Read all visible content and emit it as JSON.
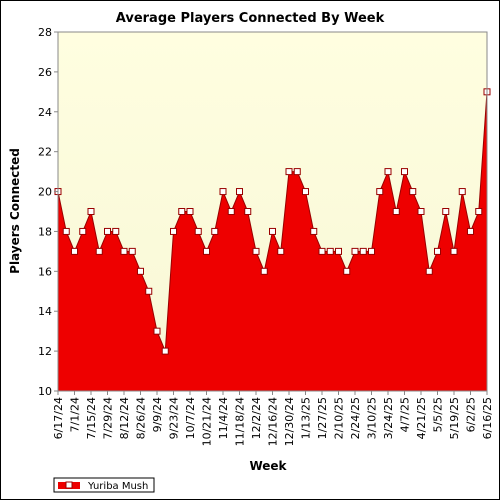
{
  "chart_data": {
    "type": "area",
    "title": "Average Players Connected By Week",
    "xlabel": "Week",
    "ylabel": "Players Connected",
    "ylim": [
      10,
      28
    ],
    "yticks": [
      10,
      12,
      14,
      16,
      18,
      20,
      22,
      24,
      26,
      28
    ],
    "grid": false,
    "legend_position": "bottom-left",
    "colors": {
      "fill": "#ee0000",
      "line": "#990000",
      "plot_bg_top": "#fffee0",
      "plot_bg_bottom": "#f7f7d6",
      "marker_fill": "#ffffff"
    },
    "x_tick_labels": [
      "6/17/24",
      "7/1/24",
      "7/15/24",
      "7/29/24",
      "8/12/24",
      "8/26/24",
      "9/9/24",
      "9/23/24",
      "10/7/24",
      "10/21/24",
      "11/4/24",
      "11/18/24",
      "12/2/24",
      "12/16/24",
      "12/30/24",
      "1/13/25",
      "1/27/25",
      "2/10/25",
      "2/24/25",
      "3/10/25",
      "3/24/25",
      "4/7/25",
      "4/21/25",
      "5/5/25",
      "5/19/25",
      "6/2/25",
      "6/16/25"
    ],
    "series": [
      {
        "name": "Yuriba Mush",
        "x": [
          "6/17/24",
          "6/24/24",
          "7/1/24",
          "7/8/24",
          "7/15/24",
          "7/22/24",
          "7/29/24",
          "8/5/24",
          "8/12/24",
          "8/19/24",
          "8/26/24",
          "9/2/24",
          "9/9/24",
          "9/16/24",
          "9/23/24",
          "9/30/24",
          "10/7/24",
          "10/14/24",
          "10/21/24",
          "10/28/24",
          "11/4/24",
          "11/11/24",
          "11/18/24",
          "11/25/24",
          "12/2/24",
          "12/9/24",
          "12/16/24",
          "12/23/24",
          "12/30/24",
          "1/6/25",
          "1/13/25",
          "1/20/25",
          "1/27/25",
          "2/3/25",
          "2/10/25",
          "2/17/25",
          "2/24/25",
          "3/3/25",
          "3/10/25",
          "3/17/25",
          "3/24/25",
          "3/31/25",
          "4/7/25",
          "4/14/25",
          "4/21/25",
          "4/28/25",
          "5/5/25",
          "5/12/25",
          "5/19/25",
          "5/26/25",
          "6/2/25",
          "6/9/25",
          "6/16/25"
        ],
        "values": [
          20,
          18,
          17,
          18,
          19,
          17,
          18,
          18,
          17,
          17,
          16,
          15,
          13,
          12,
          18,
          19,
          19,
          18,
          17,
          18,
          20,
          19,
          20,
          19,
          17,
          16,
          18,
          17,
          21,
          21,
          20,
          18,
          17,
          17,
          17,
          16,
          17,
          17,
          17,
          20,
          21,
          19,
          21,
          20,
          19,
          16,
          17,
          19,
          17,
          20,
          18,
          19,
          25
        ]
      }
    ]
  }
}
